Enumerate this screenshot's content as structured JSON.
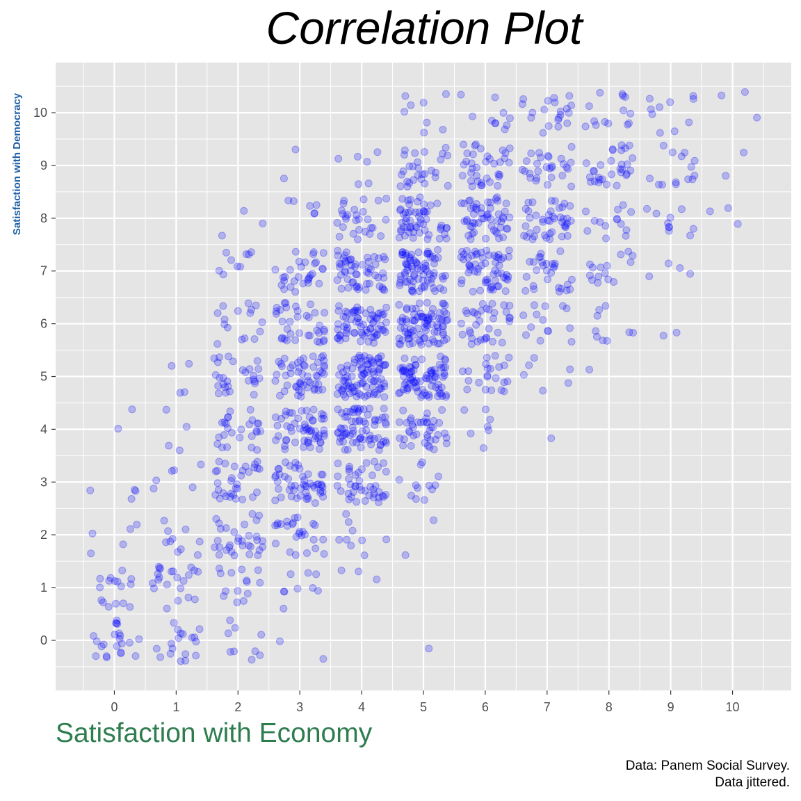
{
  "chart_data": {
    "type": "scatter",
    "title": "Correlation Plot",
    "xlabel": "Satisfaction with Economy",
    "ylabel": "Satisfaction with Democracy",
    "caption_lines": [
      "Data: Panem Social Survey.",
      "Data jittered."
    ],
    "x_ticks": [
      "0",
      "1",
      "2",
      "3",
      "4",
      "5",
      "6",
      "7",
      "8",
      "9",
      "10"
    ],
    "y_ticks": [
      "0",
      "1",
      "2",
      "3",
      "4",
      "5",
      "6",
      "7",
      "8",
      "9",
      "10"
    ],
    "xlim": [
      -0.95,
      10.95
    ],
    "ylim": [
      -0.95,
      10.95
    ],
    "jitter": 0.4,
    "point_color": "#0000ff",
    "point_opacity": 0.22,
    "panel_color": "#e5e5e5",
    "grid": true,
    "counts": [
      [
        22,
        18,
        9,
        2,
        0,
        1,
        0,
        0,
        0,
        0,
        0
      ],
      [
        16,
        22,
        14,
        9,
        3,
        0,
        0,
        0,
        0,
        0,
        0
      ],
      [
        5,
        10,
        32,
        26,
        9,
        2,
        0,
        0,
        0,
        0,
        0
      ],
      [
        4,
        6,
        32,
        50,
        42,
        12,
        0,
        0,
        0,
        0,
        0
      ],
      [
        2,
        4,
        26,
        55,
        70,
        40,
        7,
        1,
        0,
        0,
        0
      ],
      [
        0,
        4,
        28,
        54,
        90,
        80,
        22,
        6,
        1,
        0,
        0
      ],
      [
        0,
        0,
        16,
        36,
        70,
        85,
        35,
        14,
        9,
        2,
        0
      ],
      [
        0,
        0,
        9,
        30,
        55,
        75,
        60,
        28,
        15,
        4,
        0
      ],
      [
        0,
        0,
        3,
        6,
        28,
        55,
        54,
        43,
        14,
        10,
        3
      ],
      [
        0,
        0,
        0,
        2,
        6,
        28,
        36,
        28,
        30,
        14,
        2
      ],
      [
        0,
        0,
        0,
        0,
        0,
        8,
        10,
        20,
        14,
        10,
        3
      ]
    ]
  }
}
